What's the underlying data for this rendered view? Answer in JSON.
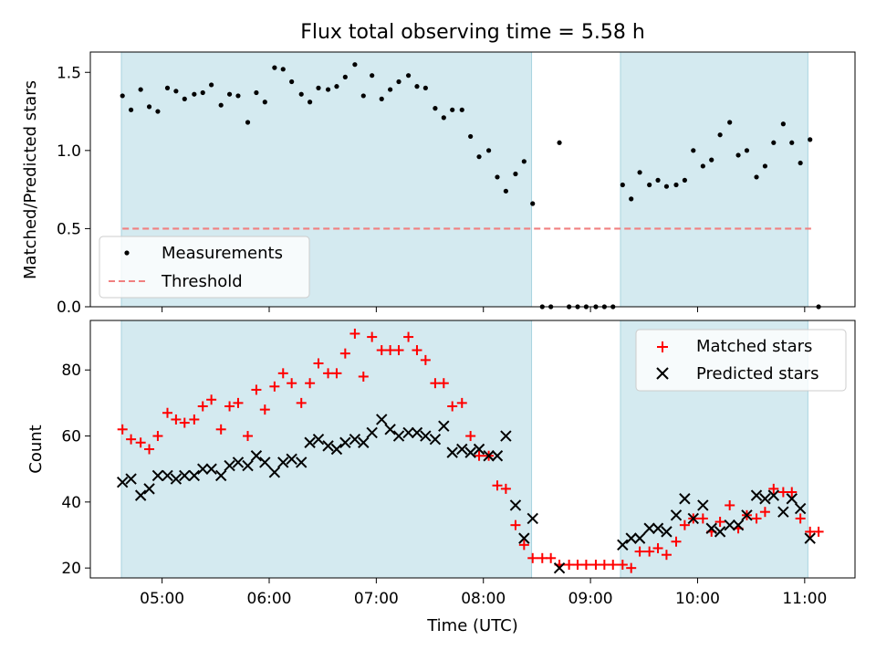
{
  "chart_data": [
    {
      "type": "scatter",
      "title": "Flux total observing time = 5.58 h",
      "xlabel": "",
      "ylabel": "Matched/Predicted stars",
      "xlim_hours": [
        4.33,
        11.47
      ],
      "ylim": [
        0,
        1.63
      ],
      "yticks": [
        "0.0",
        "0.5",
        "1.0",
        "1.5"
      ],
      "shaded_ranges_hours": [
        [
          4.62,
          8.45
        ],
        [
          9.28,
          11.03
        ]
      ],
      "shade_color": "#d4eaf0",
      "legend_position": "lower-left",
      "series": [
        {
          "name": "Measurements",
          "color": "#000000",
          "marker": "dot",
          "points": [
            [
              4.63,
              1.35
            ],
            [
              4.71,
              1.26
            ],
            [
              4.8,
              1.39
            ],
            [
              4.88,
              1.28
            ],
            [
              4.96,
              1.25
            ],
            [
              5.05,
              1.4
            ],
            [
              5.13,
              1.38
            ],
            [
              5.21,
              1.33
            ],
            [
              5.3,
              1.36
            ],
            [
              5.38,
              1.37
            ],
            [
              5.46,
              1.42
            ],
            [
              5.55,
              1.29
            ],
            [
              5.63,
              1.36
            ],
            [
              5.71,
              1.35
            ],
            [
              5.8,
              1.18
            ],
            [
              5.88,
              1.37
            ],
            [
              5.96,
              1.31
            ],
            [
              6.05,
              1.53
            ],
            [
              6.13,
              1.52
            ],
            [
              6.21,
              1.44
            ],
            [
              6.3,
              1.36
            ],
            [
              6.38,
              1.31
            ],
            [
              6.46,
              1.4
            ],
            [
              6.55,
              1.39
            ],
            [
              6.63,
              1.41
            ],
            [
              6.71,
              1.47
            ],
            [
              6.8,
              1.55
            ],
            [
              6.88,
              1.35
            ],
            [
              6.96,
              1.48
            ],
            [
              7.05,
              1.33
            ],
            [
              7.13,
              1.39
            ],
            [
              7.21,
              1.44
            ],
            [
              7.3,
              1.48
            ],
            [
              7.38,
              1.41
            ],
            [
              7.46,
              1.4
            ],
            [
              7.55,
              1.27
            ],
            [
              7.63,
              1.21
            ],
            [
              7.71,
              1.26
            ],
            [
              7.8,
              1.26
            ],
            [
              7.88,
              1.09
            ],
            [
              7.96,
              0.96
            ],
            [
              8.05,
              1.0
            ],
            [
              8.13,
              0.83
            ],
            [
              8.21,
              0.74
            ],
            [
              8.3,
              0.85
            ],
            [
              8.38,
              0.93
            ],
            [
              8.46,
              0.66
            ],
            [
              8.55,
              0.0
            ],
            [
              8.63,
              0.0
            ],
            [
              8.71,
              1.05
            ],
            [
              8.8,
              0.0
            ],
            [
              8.88,
              0.0
            ],
            [
              8.96,
              0.0
            ],
            [
              9.05,
              0.0
            ],
            [
              9.13,
              0.0
            ],
            [
              9.21,
              0.0
            ],
            [
              9.3,
              0.78
            ],
            [
              9.38,
              0.69
            ],
            [
              9.46,
              0.86
            ],
            [
              9.55,
              0.78
            ],
            [
              9.63,
              0.81
            ],
            [
              9.71,
              0.77
            ],
            [
              9.8,
              0.78
            ],
            [
              9.88,
              0.81
            ],
            [
              9.96,
              1.0
            ],
            [
              10.05,
              0.9
            ],
            [
              10.13,
              0.94
            ],
            [
              10.21,
              1.1
            ],
            [
              10.3,
              1.18
            ],
            [
              10.38,
              0.97
            ],
            [
              10.46,
              1.0
            ],
            [
              10.55,
              0.83
            ],
            [
              10.63,
              0.9
            ],
            [
              10.71,
              1.05
            ],
            [
              10.8,
              1.17
            ],
            [
              10.88,
              1.05
            ],
            [
              10.96,
              0.92
            ],
            [
              11.05,
              1.07
            ],
            [
              11.13,
              0.0
            ]
          ]
        },
        {
          "name": "Threshold",
          "color": "#f08080",
          "style": "dashed",
          "points": [
            [
              4.63,
              0.5
            ],
            [
              11.06,
              0.5
            ]
          ]
        }
      ]
    },
    {
      "type": "scatter",
      "title": "",
      "xlabel": "Time (UTC)",
      "ylabel": "Count",
      "xlim_hours": [
        4.33,
        11.47
      ],
      "ylim": [
        17,
        95
      ],
      "yticks": [
        "20",
        "40",
        "60",
        "80"
      ],
      "xticks": [
        {
          "hour": 5,
          "label": "05:00"
        },
        {
          "hour": 6,
          "label": "06:00"
        },
        {
          "hour": 7,
          "label": "07:00"
        },
        {
          "hour": 8,
          "label": "08:00"
        },
        {
          "hour": 9,
          "label": "09:00"
        },
        {
          "hour": 10,
          "label": "10:00"
        },
        {
          "hour": 11,
          "label": "11:00"
        }
      ],
      "shaded_ranges_hours": [
        [
          4.62,
          8.45
        ],
        [
          9.28,
          11.03
        ]
      ],
      "shade_color": "#d4eaf0",
      "legend_position": "upper-right",
      "series": [
        {
          "name": "Matched stars",
          "color": "#ff0000",
          "marker": "plus",
          "points": [
            [
              4.63,
              62
            ],
            [
              4.71,
              59
            ],
            [
              4.8,
              58
            ],
            [
              4.88,
              56
            ],
            [
              4.96,
              60
            ],
            [
              5.05,
              67
            ],
            [
              5.13,
              65
            ],
            [
              5.21,
              64
            ],
            [
              5.3,
              65
            ],
            [
              5.38,
              69
            ],
            [
              5.46,
              71
            ],
            [
              5.55,
              62
            ],
            [
              5.63,
              69
            ],
            [
              5.71,
              70
            ],
            [
              5.8,
              60
            ],
            [
              5.88,
              74
            ],
            [
              5.96,
              68
            ],
            [
              6.05,
              75
            ],
            [
              6.13,
              79
            ],
            [
              6.21,
              76
            ],
            [
              6.3,
              70
            ],
            [
              6.38,
              76
            ],
            [
              6.46,
              82
            ],
            [
              6.55,
              79
            ],
            [
              6.63,
              79
            ],
            [
              6.71,
              85
            ],
            [
              6.8,
              91
            ],
            [
              6.88,
              78
            ],
            [
              6.96,
              90
            ],
            [
              7.05,
              86
            ],
            [
              7.13,
              86
            ],
            [
              7.21,
              86
            ],
            [
              7.3,
              90
            ],
            [
              7.38,
              86
            ],
            [
              7.46,
              83
            ],
            [
              7.55,
              76
            ],
            [
              7.63,
              76
            ],
            [
              7.71,
              69
            ],
            [
              7.8,
              70
            ],
            [
              7.88,
              60
            ],
            [
              7.96,
              54
            ],
            [
              8.05,
              54
            ],
            [
              8.13,
              45
            ],
            [
              8.21,
              44
            ],
            [
              8.3,
              33
            ],
            [
              8.38,
              27
            ],
            [
              8.46,
              23
            ],
            [
              8.55,
              23
            ],
            [
              8.63,
              23
            ],
            [
              8.71,
              21
            ],
            [
              8.8,
              21
            ],
            [
              8.88,
              21
            ],
            [
              8.96,
              21
            ],
            [
              9.05,
              21
            ],
            [
              9.13,
              21
            ],
            [
              9.21,
              21
            ],
            [
              9.3,
              21
            ],
            [
              9.38,
              20
            ],
            [
              9.46,
              25
            ],
            [
              9.55,
              25
            ],
            [
              9.63,
              26
            ],
            [
              9.71,
              24
            ],
            [
              9.8,
              28
            ],
            [
              9.88,
              33
            ],
            [
              9.96,
              35
            ],
            [
              10.05,
              35
            ],
            [
              10.13,
              31
            ],
            [
              10.21,
              34
            ],
            [
              10.3,
              39
            ],
            [
              10.38,
              32
            ],
            [
              10.46,
              36
            ],
            [
              10.55,
              35
            ],
            [
              10.63,
              37
            ],
            [
              10.71,
              44
            ],
            [
              10.8,
              43
            ],
            [
              10.88,
              43
            ],
            [
              10.96,
              35
            ],
            [
              11.05,
              31
            ],
            [
              11.13,
              31
            ]
          ]
        },
        {
          "name": "Predicted stars",
          "color": "#000000",
          "marker": "x",
          "points": [
            [
              4.63,
              46
            ],
            [
              4.71,
              47
            ],
            [
              4.8,
              42
            ],
            [
              4.88,
              44
            ],
            [
              4.96,
              48
            ],
            [
              5.05,
              48
            ],
            [
              5.13,
              47
            ],
            [
              5.21,
              48
            ],
            [
              5.3,
              48
            ],
            [
              5.38,
              50
            ],
            [
              5.46,
              50
            ],
            [
              5.55,
              48
            ],
            [
              5.63,
              51
            ],
            [
              5.71,
              52
            ],
            [
              5.8,
              51
            ],
            [
              5.88,
              54
            ],
            [
              5.96,
              52
            ],
            [
              6.05,
              49
            ],
            [
              6.13,
              52
            ],
            [
              6.21,
              53
            ],
            [
              6.3,
              52
            ],
            [
              6.38,
              58
            ],
            [
              6.46,
              59
            ],
            [
              6.55,
              57
            ],
            [
              6.63,
              56
            ],
            [
              6.71,
              58
            ],
            [
              6.8,
              59
            ],
            [
              6.88,
              58
            ],
            [
              6.96,
              61
            ],
            [
              7.05,
              65
            ],
            [
              7.13,
              62
            ],
            [
              7.21,
              60
            ],
            [
              7.3,
              61
            ],
            [
              7.38,
              61
            ],
            [
              7.46,
              60
            ],
            [
              7.55,
              59
            ],
            [
              7.63,
              63
            ],
            [
              7.71,
              55
            ],
            [
              7.8,
              56
            ],
            [
              7.88,
              55
            ],
            [
              7.96,
              56
            ],
            [
              8.05,
              54
            ],
            [
              8.13,
              54
            ],
            [
              8.21,
              60
            ],
            [
              8.3,
              39
            ],
            [
              8.38,
              29
            ],
            [
              8.46,
              35
            ],
            [
              8.71,
              20
            ],
            [
              9.3,
              27
            ],
            [
              9.38,
              29
            ],
            [
              9.46,
              29
            ],
            [
              9.55,
              32
            ],
            [
              9.63,
              32
            ],
            [
              9.71,
              31
            ],
            [
              9.8,
              36
            ],
            [
              9.88,
              41
            ],
            [
              9.96,
              35
            ],
            [
              10.05,
              39
            ],
            [
              10.13,
              32
            ],
            [
              10.21,
              31
            ],
            [
              10.3,
              33
            ],
            [
              10.38,
              33
            ],
            [
              10.46,
              36
            ],
            [
              10.55,
              42
            ],
            [
              10.63,
              41
            ],
            [
              10.71,
              42
            ],
            [
              10.8,
              37
            ],
            [
              10.88,
              41
            ],
            [
              10.96,
              38
            ],
            [
              11.05,
              29
            ]
          ]
        }
      ]
    }
  ]
}
